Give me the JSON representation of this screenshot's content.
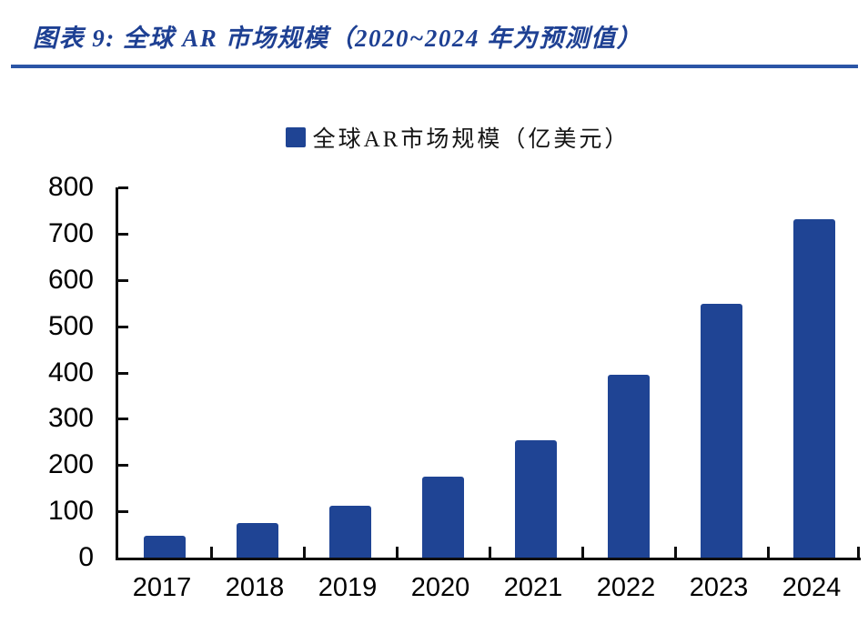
{
  "figure": {
    "title": "图表 9: 全球 AR 市场规模（2020~2024 年为预测值）",
    "legend_label": "全球AR市场规模（亿美元）"
  },
  "colors": {
    "bar": "#1F4494",
    "title_text": "#1E4093",
    "divider": "#2B55A6",
    "axis": "#0d0d0d",
    "tick_label": "#000000"
  },
  "chart_data": {
    "type": "bar",
    "title": "图表 9: 全球 AR 市场规模（2020~2024 年为预测值）",
    "legend": [
      "全球AR市场规模（亿美元）"
    ],
    "legend_position": "top-center",
    "categories": [
      "2017",
      "2018",
      "2019",
      "2020",
      "2021",
      "2022",
      "2023",
      "2024"
    ],
    "values": [
      48,
      75,
      112,
      174,
      254,
      395,
      548,
      732
    ],
    "xlabel": "",
    "ylabel": "",
    "ylim": [
      0,
      800
    ],
    "ytick_interval": 100,
    "yticks": [
      0,
      100,
      200,
      300,
      400,
      500,
      600,
      700,
      800
    ],
    "grid": false,
    "bar_color": "#1F4494",
    "note": "2020~2024 年为预测值"
  }
}
